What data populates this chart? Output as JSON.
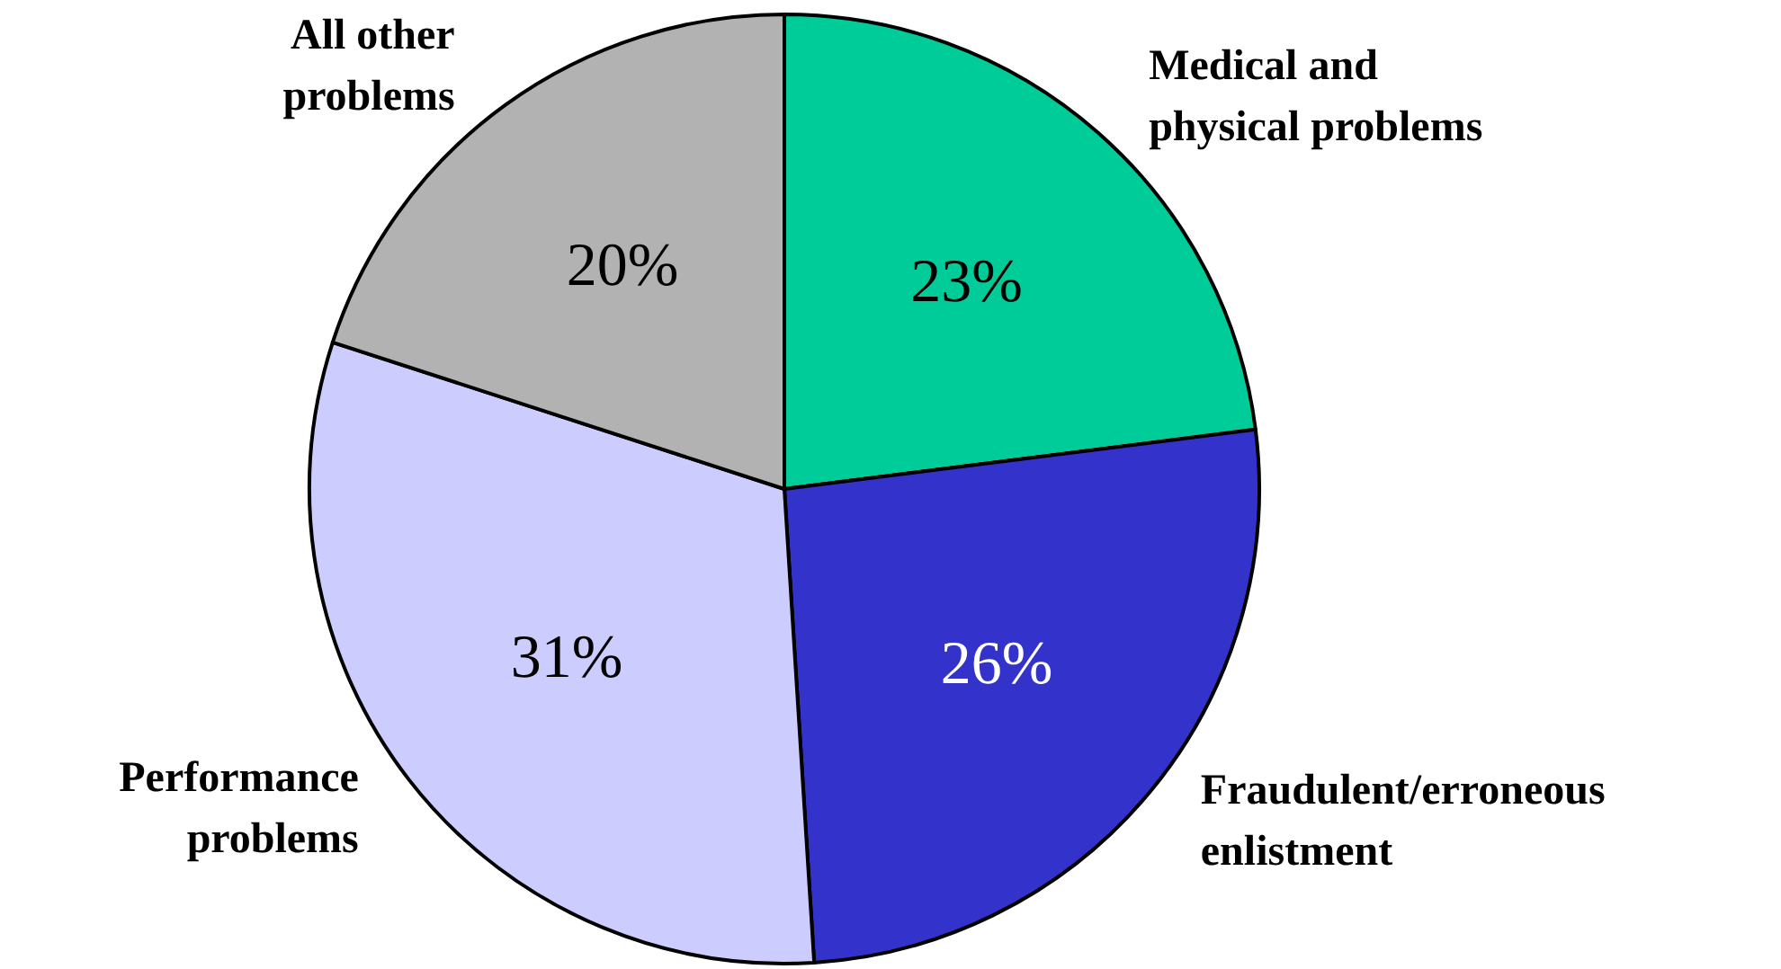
{
  "chart_data": {
    "type": "pie",
    "categories": [
      "Medical and physical problems",
      "Fraudulent/erroneous enlistment",
      "Performance problems",
      "All other problems"
    ],
    "values": [
      23,
      26,
      31,
      20
    ],
    "value_labels": [
      "23%",
      "26%",
      "31%",
      "20%"
    ],
    "colors": [
      "#00cc99",
      "#3333cc",
      "#ccccff",
      "#b2b2b2"
    ]
  }
}
